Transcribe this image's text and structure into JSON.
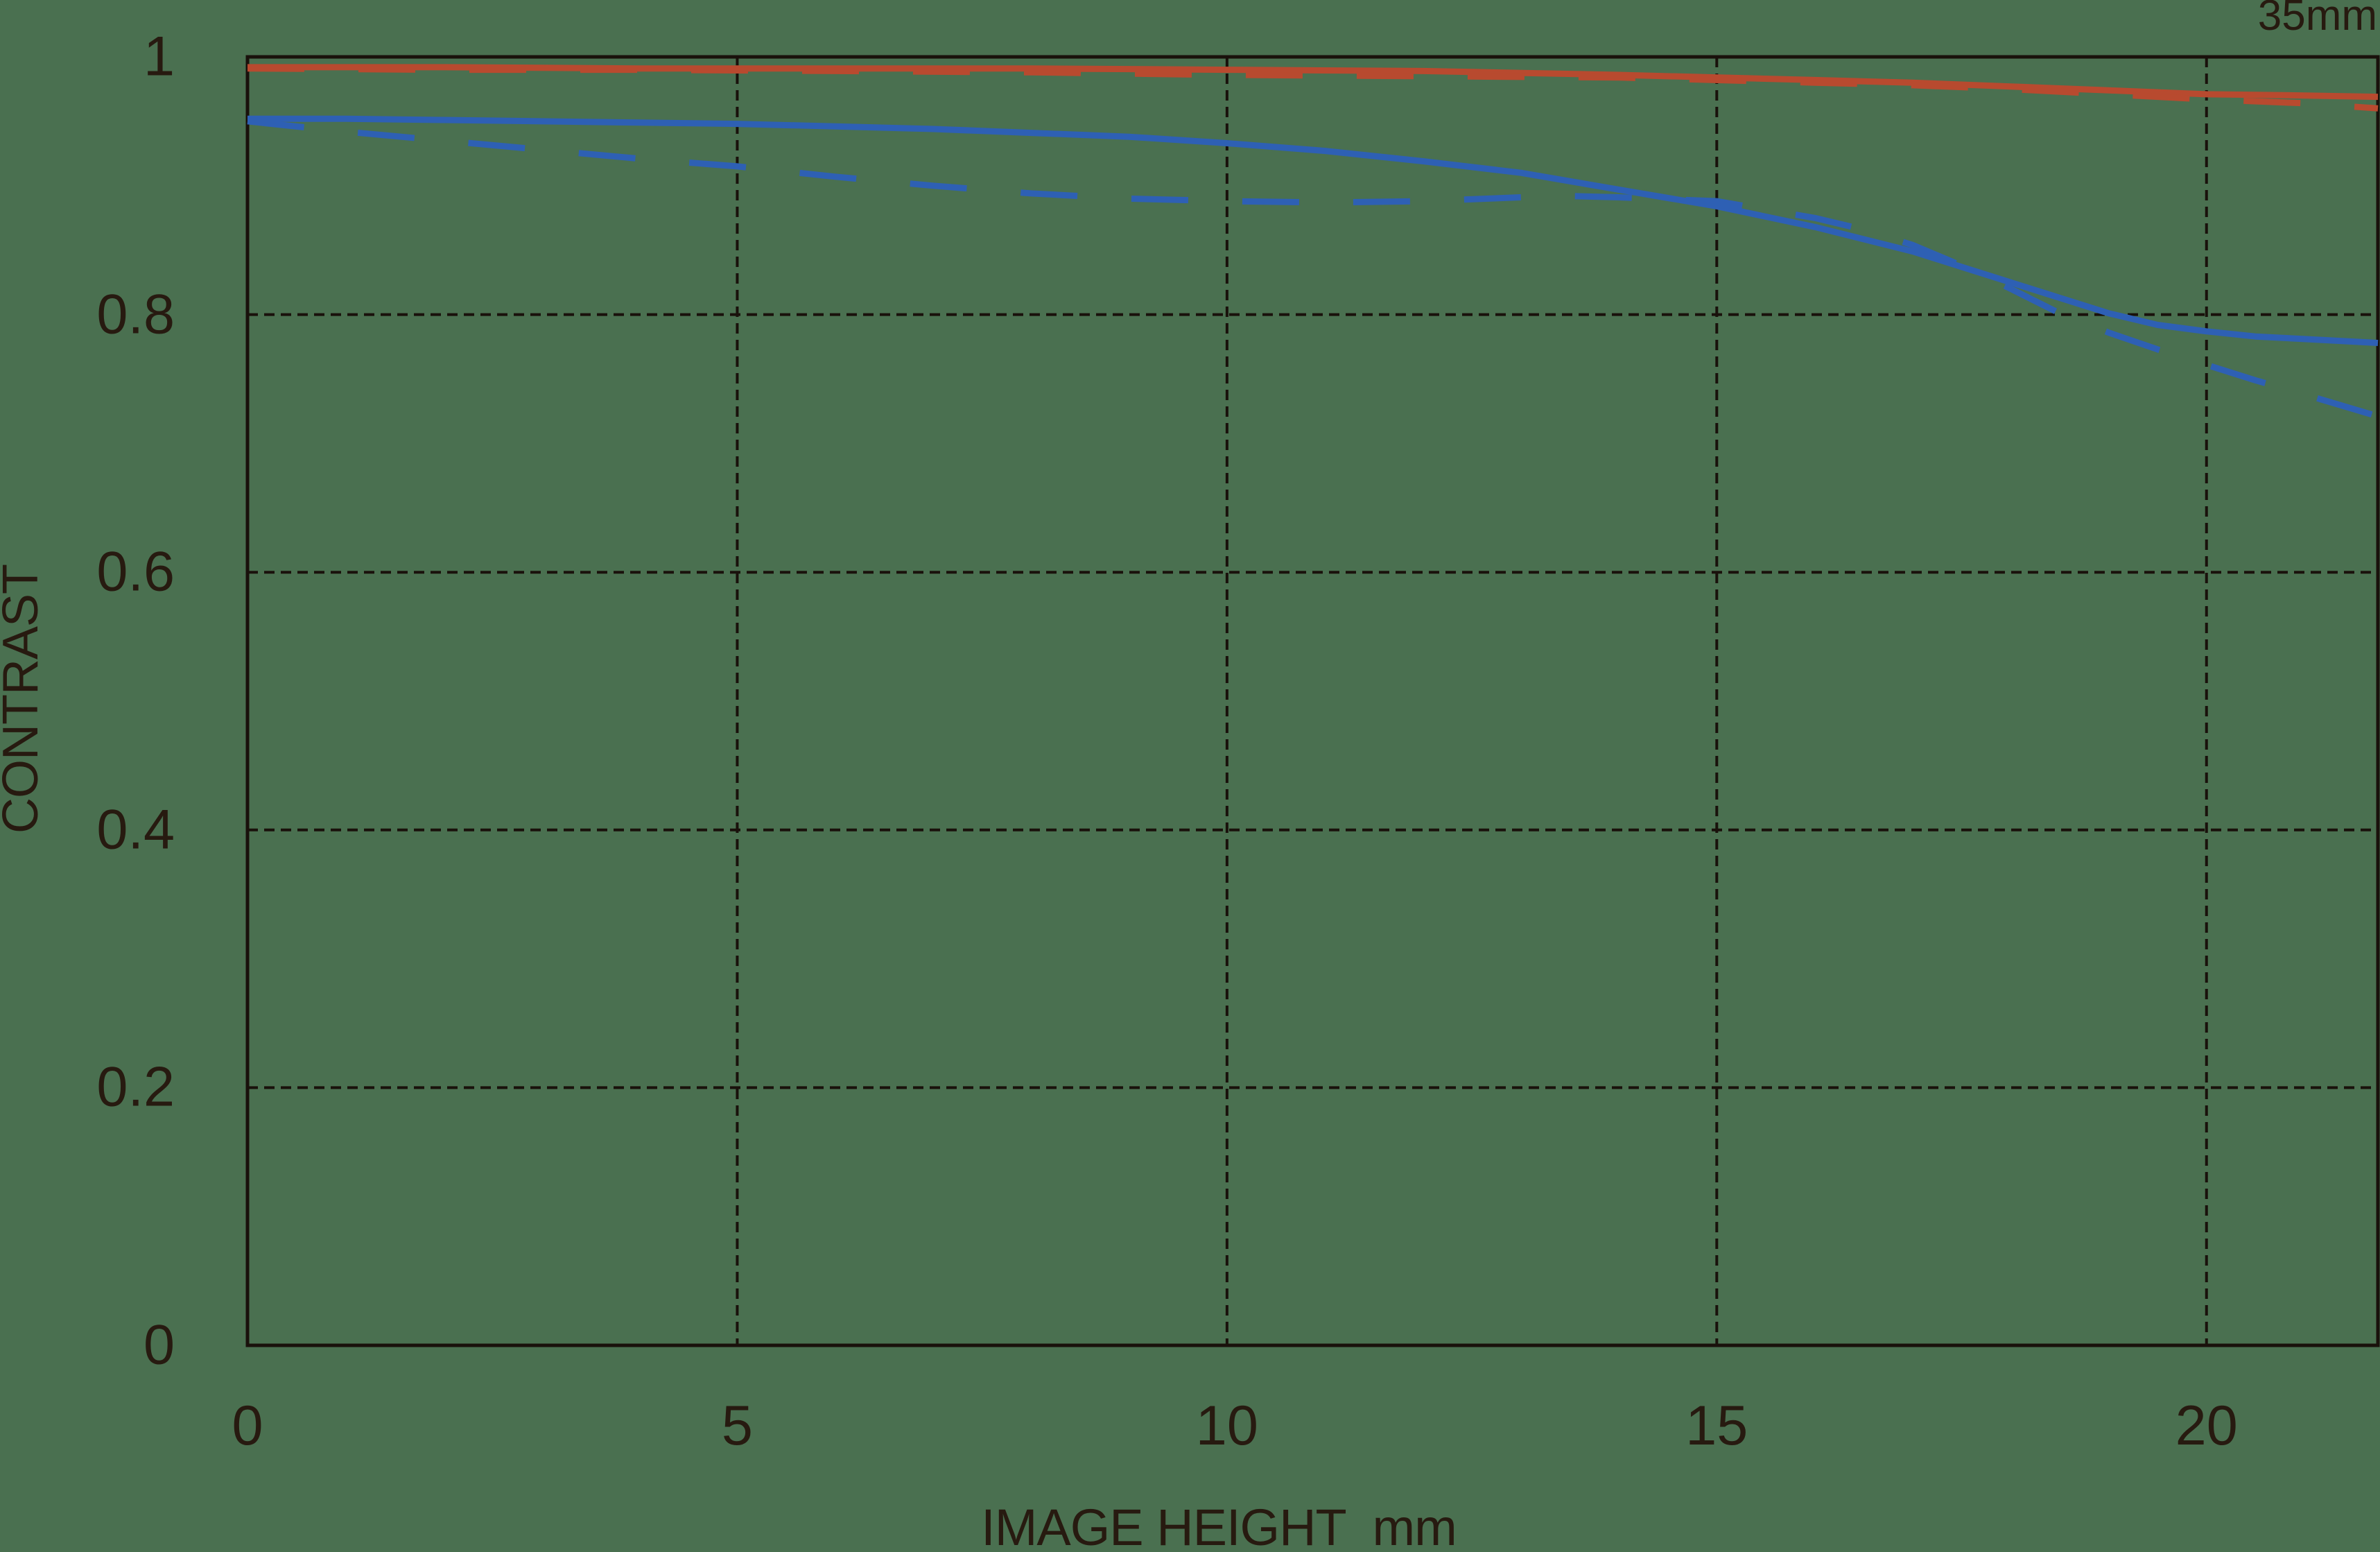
{
  "colors": {
    "background": "#4a7050",
    "axis": "#19110b",
    "text": "#271a10",
    "red": "#b84a2f",
    "blue": "#2e60b4"
  },
  "chart_data": {
    "type": "line",
    "title": "35mm",
    "xlabel": "IMAGE HEIGHT  mm",
    "ylabel": "CONTRAST",
    "xlim": [
      0,
      21.75
    ],
    "ylim": [
      0,
      1
    ],
    "grid": "dashed",
    "legend_position": "none",
    "x_ticks": [
      {
        "value": 0,
        "label": "0"
      },
      {
        "value": 5,
        "label": "5"
      },
      {
        "value": 10,
        "label": "10"
      },
      {
        "value": 15,
        "label": "15"
      },
      {
        "value": 20,
        "label": "20"
      }
    ],
    "y_ticks": [
      {
        "value": 0,
        "label": "0"
      },
      {
        "value": 0.2,
        "label": "0.2"
      },
      {
        "value": 0.4,
        "label": "0.4"
      },
      {
        "value": 0.6,
        "label": "0.6"
      },
      {
        "value": 0.8,
        "label": "0.8"
      },
      {
        "value": 1,
        "label": "1"
      }
    ],
    "series": [
      {
        "name": "red-solid",
        "color_key": "red",
        "dash": "solid",
        "x": [
          0,
          2,
          4,
          6,
          8,
          10,
          12,
          14,
          16,
          17,
          18,
          19,
          20,
          21,
          21.75
        ],
        "y": [
          0.992,
          0.992,
          0.991,
          0.991,
          0.991,
          0.99,
          0.989,
          0.986,
          0.982,
          0.98,
          0.977,
          0.974,
          0.971,
          0.97,
          0.969
        ]
      },
      {
        "name": "red-dashed",
        "color_key": "red",
        "dash": "dashed",
        "x": [
          0,
          2,
          4,
          6,
          8,
          10,
          12,
          14,
          16,
          17,
          18,
          19,
          20,
          21,
          21.75
        ],
        "y": [
          0.991,
          0.99,
          0.99,
          0.989,
          0.988,
          0.986,
          0.985,
          0.984,
          0.98,
          0.978,
          0.975,
          0.971,
          0.967,
          0.964,
          0.96
        ]
      },
      {
        "name": "blue-solid",
        "color_key": "blue",
        "dash": "solid",
        "x": [
          0,
          1,
          2,
          3,
          4,
          5,
          6,
          7,
          8,
          9,
          10,
          11,
          12,
          13,
          14,
          15,
          16,
          17,
          18,
          18.5,
          19,
          19.5,
          20,
          20.5,
          21,
          21.75
        ],
        "y": [
          0.952,
          0.952,
          0.951,
          0.95,
          0.949,
          0.948,
          0.946,
          0.944,
          0.941,
          0.938,
          0.933,
          0.927,
          0.919,
          0.91,
          0.897,
          0.884,
          0.868,
          0.849,
          0.825,
          0.813,
          0.801,
          0.792,
          0.787,
          0.783,
          0.781,
          0.778
        ]
      },
      {
        "name": "blue-dashed",
        "color_key": "blue",
        "dash": "dashed",
        "x": [
          0,
          1,
          2,
          3,
          4,
          5,
          6,
          7,
          8,
          9,
          10,
          11,
          12,
          13,
          13.5,
          14,
          15,
          16,
          16.5,
          17,
          17.5,
          18,
          18.5,
          19,
          19.5,
          20,
          20.5,
          21,
          21.75
        ],
        "y": [
          0.95,
          0.942,
          0.935,
          0.928,
          0.921,
          0.915,
          0.907,
          0.9,
          0.894,
          0.89,
          0.888,
          0.887,
          0.888,
          0.891,
          0.892,
          0.891,
          0.888,
          0.875,
          0.866,
          0.854,
          0.838,
          0.82,
          0.801,
          0.786,
          0.773,
          0.761,
          0.749,
          0.738,
          0.721
        ]
      }
    ]
  }
}
